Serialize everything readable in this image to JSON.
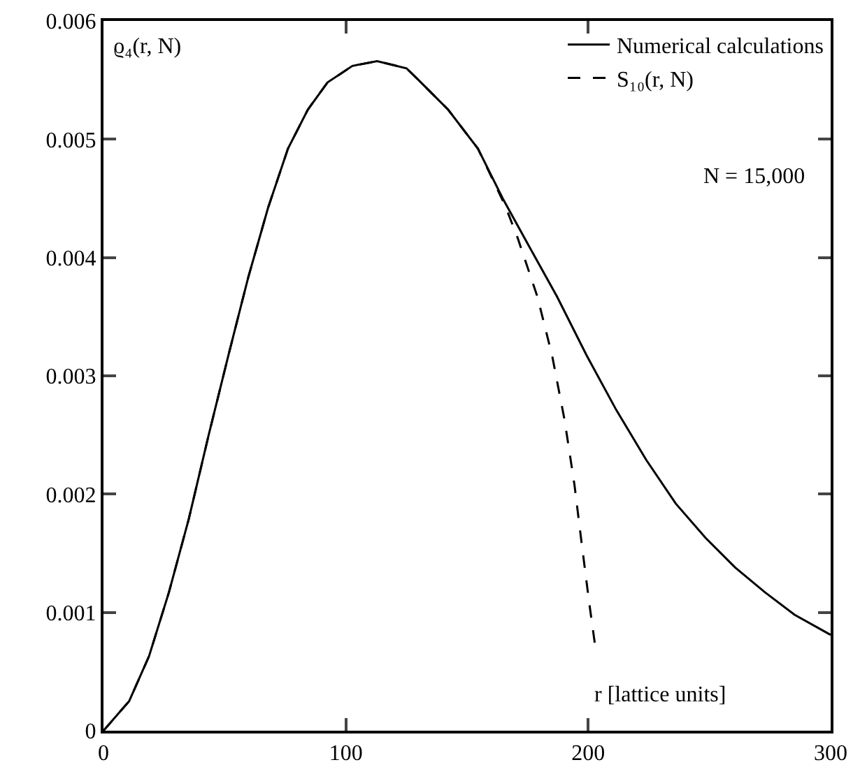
{
  "chart_data": {
    "type": "line",
    "xlabel": "r [lattice units]",
    "ylabel": "ϱ₄(r, N)",
    "annotations": [
      "N = 15,000"
    ],
    "xlim": [
      0,
      300
    ],
    "xticks": [
      0,
      100,
      200,
      300
    ],
    "ylim": [
      0,
      0.006
    ],
    "yticks": [
      0,
      0.001,
      0.002,
      0.003,
      0.004,
      0.005,
      0.006
    ],
    "grid": false,
    "legend": "top right",
    "marker": "none",
    "series": [
      {
        "name": "Numerical calculations",
        "color": "#000000",
        "line_style": "solid",
        "x": [
          0,
          10.6,
          18.8,
          27,
          35.2,
          43.4,
          51.5,
          59.7,
          67.9,
          76.1,
          84.3,
          92.4,
          102.7,
          112.9,
          125,
          130,
          142.2,
          154.5,
          164.7,
          174.9,
          187.1,
          199.4,
          211.6,
          223.9,
          236.1,
          248.4,
          260.6,
          272.9,
          285.1,
          300
        ],
        "values": [
          0,
          0.00025,
          0.00063,
          0.00117,
          0.00179,
          0.0025,
          0.00317,
          0.00383,
          0.00442,
          0.00492,
          0.00525,
          0.00548,
          0.00562,
          0.00566,
          0.0056,
          0.0055,
          0.00525,
          0.00492,
          0.0045,
          0.00412,
          0.00367,
          0.00317,
          0.00271,
          0.00229,
          0.00192,
          0.00163,
          0.00138,
          0.00117,
          0.00098,
          0.00081
        ]
      },
      {
        "name": "S₁₀(r, N)",
        "color": "#000000",
        "line_style": "dashed",
        "x": [
          0,
          10.6,
          18.8,
          27,
          35.2,
          43.4,
          51.5,
          59.7,
          67.9,
          76.1,
          84.3,
          92.4,
          102.7,
          112.9,
          125,
          130,
          142.2,
          154.5,
          165.7,
          170.8,
          179,
          185.1,
          190.2,
          194.3,
          197.3,
          200.4,
          202.9
        ],
        "values": [
          0,
          0.00025,
          0.00063,
          0.00117,
          0.00179,
          0.0025,
          0.00317,
          0.00383,
          0.00442,
          0.00492,
          0.00525,
          0.00548,
          0.00562,
          0.00566,
          0.0056,
          0.0055,
          0.00525,
          0.00492,
          0.00444,
          0.00417,
          0.00367,
          0.00317,
          0.00263,
          0.00208,
          0.00158,
          0.00108,
          0.00071
        ]
      }
    ]
  }
}
